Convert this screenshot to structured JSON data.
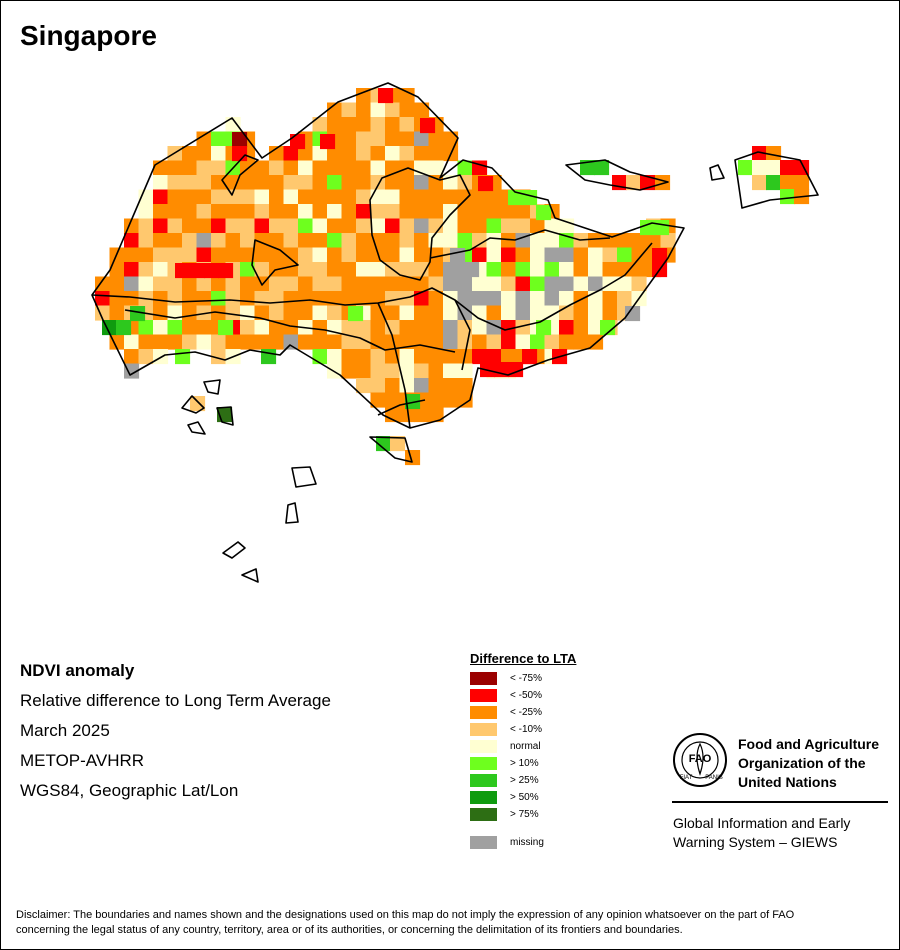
{
  "title": "Singapore",
  "info": {
    "line1": "NDVI anomaly",
    "line2": "Relative difference to Long Term Average",
    "line3": "March 2025",
    "line4": "METOP-AVHRR",
    "line5": "WGS84, Geographic Lat/Lon"
  },
  "legend": {
    "title": "Difference to LTA",
    "classes": [
      {
        "label": "< -75%",
        "color": "#9b0000"
      },
      {
        "label": "< -50%",
        "color": "#ff0000"
      },
      {
        "label": "< -25%",
        "color": "#ff8c00"
      },
      {
        "label": "< -10%",
        "color": "#ffc86e"
      },
      {
        "label": "normal",
        "color": "#ffffd2"
      },
      {
        "label": "> 10%",
        "color": "#6eff1e"
      },
      {
        "label": "> 25%",
        "color": "#2dc81e"
      },
      {
        "label": "> 50%",
        "color": "#0f9b0f"
      },
      {
        "label": "> 75%",
        "color": "#2d6e14"
      }
    ],
    "missing": {
      "label": "missing",
      "color": "#a0a0a0"
    }
  },
  "organization": {
    "name_line1": "Food and Agriculture",
    "name_line2": "Organization of the",
    "name_line3": "United Nations",
    "logo_text": "FAO",
    "logo_ring_left": "FIAT",
    "logo_ring_right": "PANIS",
    "giews_line1": "Global Information and Early",
    "giews_line2": "Warning System – GIEWS"
  },
  "disclaimer_line1": "Disclaimer: The boundaries and names shown and the designations used on this map do not imply the expression of any opinion whatsoever on the part of FAO",
  "disclaimer_line2": "concerning the legal status of any country, territory, area or of its authorities, or concerning the delimitation of its frontiers and boundaries."
}
